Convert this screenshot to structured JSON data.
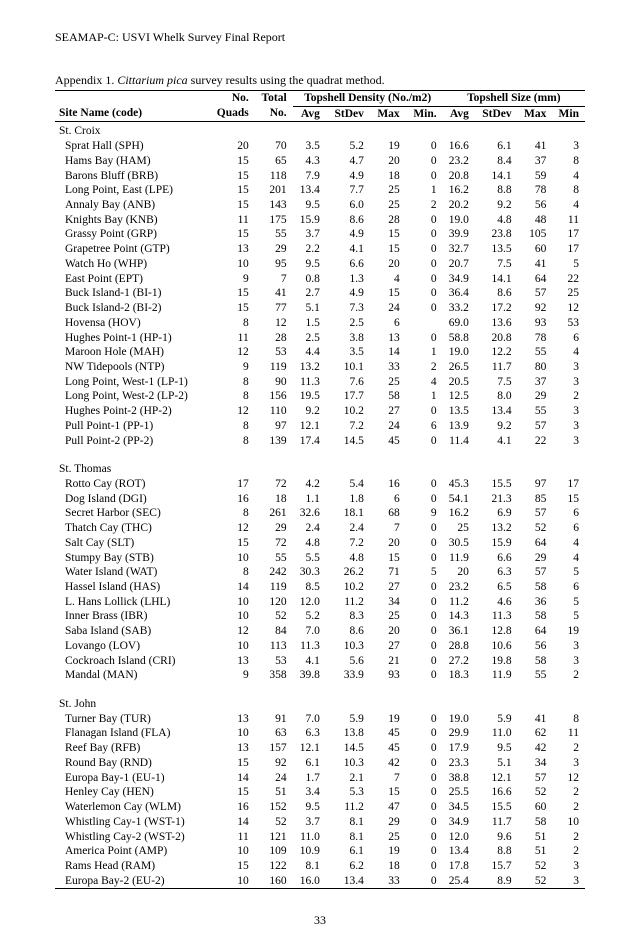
{
  "header": "SEAMAP-C: USVI Whelk Survey Final Report",
  "appendix_label": "Appendix 1.",
  "species": "Cittarium pica",
  "appendix_rest": " survey results using the quadrat method.",
  "page_number": "33",
  "columns": {
    "site": "Site Name (code)",
    "no_quads_top": "No.",
    "no_quads_bot": "Quads",
    "total_top": "Total",
    "total_bot": "No.",
    "density_header": "Topshell Density (No./m2)",
    "size_header": "Topshell Size (mm)",
    "avg": "Avg",
    "stdev": "StDev",
    "max": "Max",
    "min": "Min.",
    "min2": "Min"
  },
  "regions": [
    {
      "name": "St. Croix",
      "rows": [
        {
          "site": "Sprat Hall  (SPH)",
          "q": "20",
          "t": "70",
          "da": "3.5",
          "ds": "5.2",
          "dx": "19",
          "dn": "0",
          "sa": "16.6",
          "ss": "6.1",
          "sx": "41",
          "sn": "3"
        },
        {
          "site": "Hams Bay  (HAM)",
          "q": "15",
          "t": "65",
          "da": "4.3",
          "ds": "4.7",
          "dx": "20",
          "dn": "0",
          "sa": "23.2",
          "ss": "8.4",
          "sx": "37",
          "sn": "8"
        },
        {
          "site": "Barons Bluff  (BRB)",
          "q": "15",
          "t": "118",
          "da": "7.9",
          "ds": "4.9",
          "dx": "18",
          "dn": "0",
          "sa": "20.8",
          "ss": "14.1",
          "sx": "59",
          "sn": "4"
        },
        {
          "site": "Long Point, East  (LPE)",
          "q": "15",
          "t": "201",
          "da": "13.4",
          "ds": "7.7",
          "dx": "25",
          "dn": "1",
          "sa": "16.2",
          "ss": "8.8",
          "sx": "78",
          "sn": "8"
        },
        {
          "site": "Annaly Bay  (ANB)",
          "q": "15",
          "t": "143",
          "da": "9.5",
          "ds": "6.0",
          "dx": "25",
          "dn": "2",
          "sa": "20.2",
          "ss": "9.2",
          "sx": "56",
          "sn": "4"
        },
        {
          "site": "Knights Bay  (KNB)",
          "q": "11",
          "t": "175",
          "da": "15.9",
          "ds": "8.6",
          "dx": "28",
          "dn": "0",
          "sa": "19.0",
          "ss": "4.8",
          "sx": "48",
          "sn": "11"
        },
        {
          "site": "Grassy Point  (GRP)",
          "q": "15",
          "t": "55",
          "da": "3.7",
          "ds": "4.9",
          "dx": "15",
          "dn": "0",
          "sa": "39.9",
          "ss": "23.8",
          "sx": "105",
          "sn": "17"
        },
        {
          "site": "Grapetree Point  (GTP)",
          "q": "13",
          "t": "29",
          "da": "2.2",
          "ds": "4.1",
          "dx": "15",
          "dn": "0",
          "sa": "32.7",
          "ss": "13.5",
          "sx": "60",
          "sn": "17"
        },
        {
          "site": "Watch Ho  (WHP)",
          "q": "10",
          "t": "95",
          "da": "9.5",
          "ds": "6.6",
          "dx": "20",
          "dn": "0",
          "sa": "20.7",
          "ss": "7.5",
          "sx": "41",
          "sn": "5"
        },
        {
          "site": "East Point  (EPT)",
          "q": "9",
          "t": "7",
          "da": "0.8",
          "ds": "1.3",
          "dx": "4",
          "dn": "0",
          "sa": "34.9",
          "ss": "14.1",
          "sx": "64",
          "sn": "22"
        },
        {
          "site": "Buck Island-1  (BI-1)",
          "q": "15",
          "t": "41",
          "da": "2.7",
          "ds": "4.9",
          "dx": "15",
          "dn": "0",
          "sa": "36.4",
          "ss": "8.6",
          "sx": "57",
          "sn": "25"
        },
        {
          "site": "Buck Island-2  (BI-2)",
          "q": "15",
          "t": "77",
          "da": "5.1",
          "ds": "7.3",
          "dx": "24",
          "dn": "0",
          "sa": "33.2",
          "ss": "17.2",
          "sx": "92",
          "sn": "12"
        },
        {
          "site": "Hovensa  (HOV)",
          "q": "8",
          "t": "12",
          "da": "1.5",
          "ds": "2.5",
          "dx": "6",
          "dn": "",
          "sa": "69.0",
          "ss": "13.6",
          "sx": "93",
          "sn": "53"
        },
        {
          "site": "Hughes Point-1  (HP-1)",
          "q": "11",
          "t": "28",
          "da": "2.5",
          "ds": "3.8",
          "dx": "13",
          "dn": "0",
          "sa": "58.8",
          "ss": "20.8",
          "sx": "78",
          "sn": "6"
        },
        {
          "site": "Maroon Hole  (MAH)",
          "q": "12",
          "t": "53",
          "da": "4.4",
          "ds": "3.5",
          "dx": "14",
          "dn": "1",
          "sa": "19.0",
          "ss": "12.2",
          "sx": "55",
          "sn": "4"
        },
        {
          "site": "NW Tidepools  (NTP)",
          "q": "9",
          "t": "119",
          "da": "13.2",
          "ds": "10.1",
          "dx": "33",
          "dn": "2",
          "sa": "26.5",
          "ss": "11.7",
          "sx": "80",
          "sn": "3"
        },
        {
          "site": "Long Point, West-1  (LP-1)",
          "q": "8",
          "t": "90",
          "da": "11.3",
          "ds": "7.6",
          "dx": "25",
          "dn": "4",
          "sa": "20.5",
          "ss": "7.5",
          "sx": "37",
          "sn": "3"
        },
        {
          "site": "Long Point, West-2  (LP-2)",
          "q": "8",
          "t": "156",
          "da": "19.5",
          "ds": "17.7",
          "dx": "58",
          "dn": "1",
          "sa": "12.5",
          "ss": "8.0",
          "sx": "29",
          "sn": "2"
        },
        {
          "site": "Hughes Point-2  (HP-2)",
          "q": "12",
          "t": "110",
          "da": "9.2",
          "ds": "10.2",
          "dx": "27",
          "dn": "0",
          "sa": "13.5",
          "ss": "13.4",
          "sx": "55",
          "sn": "3"
        },
        {
          "site": "Pull Point-1  (PP-1)",
          "q": "8",
          "t": "97",
          "da": "12.1",
          "ds": "7.2",
          "dx": "24",
          "dn": "6",
          "sa": "13.9",
          "ss": "9.2",
          "sx": "57",
          "sn": "3"
        },
        {
          "site": "Pull Point-2  (PP-2)",
          "q": "8",
          "t": "139",
          "da": "17.4",
          "ds": "14.5",
          "dx": "45",
          "dn": "0",
          "sa": "11.4",
          "ss": "4.1",
          "sx": "22",
          "sn": "3"
        }
      ]
    },
    {
      "name": "St. Thomas",
      "rows": [
        {
          "site": "Rotto Cay  (ROT)",
          "q": "17",
          "t": "72",
          "da": "4.2",
          "ds": "5.4",
          "dx": "16",
          "dn": "0",
          "sa": "45.3",
          "ss": "15.5",
          "sx": "97",
          "sn": "17"
        },
        {
          "site": "Dog Island  (DGI)",
          "q": "16",
          "t": "18",
          "da": "1.1",
          "ds": "1.8",
          "dx": "6",
          "dn": "0",
          "sa": "54.1",
          "ss": "21.3",
          "sx": "85",
          "sn": "15"
        },
        {
          "site": "Secret Harbor  (SEC)",
          "q": "8",
          "t": "261",
          "da": "32.6",
          "ds": "18.1",
          "dx": "68",
          "dn": "9",
          "sa": "16.2",
          "ss": "6.9",
          "sx": "57",
          "sn": "6"
        },
        {
          "site": "Thatch Cay  (THC)",
          "q": "12",
          "t": "29",
          "da": "2.4",
          "ds": "2.4",
          "dx": "7",
          "dn": "0",
          "sa": "25",
          "ss": "13.2",
          "sx": "52",
          "sn": "6"
        },
        {
          "site": "Salt Cay  (SLT)",
          "q": "15",
          "t": "72",
          "da": "4.8",
          "ds": "7.2",
          "dx": "20",
          "dn": "0",
          "sa": "30.5",
          "ss": "15.9",
          "sx": "64",
          "sn": "4"
        },
        {
          "site": "Stumpy Bay  (STB)",
          "q": "10",
          "t": "55",
          "da": "5.5",
          "ds": "4.8",
          "dx": "15",
          "dn": "0",
          "sa": "11.9",
          "ss": "6.6",
          "sx": "29",
          "sn": "4"
        },
        {
          "site": "Water Island  (WAT)",
          "q": "8",
          "t": "242",
          "da": "30.3",
          "ds": "26.2",
          "dx": "71",
          "dn": "5",
          "sa": "20",
          "ss": "6.3",
          "sx": "57",
          "sn": "5"
        },
        {
          "site": "Hassel Island  (HAS)",
          "q": "14",
          "t": "119",
          "da": "8.5",
          "ds": "10.2",
          "dx": "27",
          "dn": "0",
          "sa": "23.2",
          "ss": "6.5",
          "sx": "58",
          "sn": "6"
        },
        {
          "site": "L. Hans Lollick  (LHL)",
          "q": "10",
          "t": "120",
          "da": "12.0",
          "ds": "11.2",
          "dx": "34",
          "dn": "0",
          "sa": "11.2",
          "ss": "4.6",
          "sx": "36",
          "sn": "5"
        },
        {
          "site": "Inner Brass  (IBR)",
          "q": "10",
          "t": "52",
          "da": "5.2",
          "ds": "8.3",
          "dx": "25",
          "dn": "0",
          "sa": "14.3",
          "ss": "11.3",
          "sx": "58",
          "sn": "5"
        },
        {
          "site": "Saba Island  (SAB)",
          "q": "12",
          "t": "84",
          "da": "7.0",
          "ds": "8.6",
          "dx": "20",
          "dn": "0",
          "sa": "36.1",
          "ss": "12.8",
          "sx": "64",
          "sn": "19"
        },
        {
          "site": "Lovango  (LOV)",
          "q": "10",
          "t": "113",
          "da": "11.3",
          "ds": "10.3",
          "dx": "27",
          "dn": "0",
          "sa": "28.8",
          "ss": "10.6",
          "sx": "56",
          "sn": "3"
        },
        {
          "site": "Cockroach Island  (CRI)",
          "q": "13",
          "t": "53",
          "da": "4.1",
          "ds": "5.6",
          "dx": "21",
          "dn": "0",
          "sa": "27.2",
          "ss": "19.8",
          "sx": "58",
          "sn": "3"
        },
        {
          "site": "Mandal  (MAN)",
          "q": "9",
          "t": "358",
          "da": "39.8",
          "ds": "33.9",
          "dx": "93",
          "dn": "0",
          "sa": "18.3",
          "ss": "11.9",
          "sx": "55",
          "sn": "2"
        }
      ]
    },
    {
      "name": "St. John",
      "rows": [
        {
          "site": "Turner Bay  (TUR)",
          "q": "13",
          "t": "91",
          "da": "7.0",
          "ds": "5.9",
          "dx": "19",
          "dn": "0",
          "sa": "19.0",
          "ss": "5.9",
          "sx": "41",
          "sn": "8"
        },
        {
          "site": "Flanagan Island  (FLA)",
          "q": "10",
          "t": "63",
          "da": "6.3",
          "ds": "13.8",
          "dx": "45",
          "dn": "0",
          "sa": "29.9",
          "ss": "11.0",
          "sx": "62",
          "sn": "11"
        },
        {
          "site": "Reef Bay  (RFB)",
          "q": "13",
          "t": "157",
          "da": "12.1",
          "ds": "14.5",
          "dx": "45",
          "dn": "0",
          "sa": "17.9",
          "ss": "9.5",
          "sx": "42",
          "sn": "2"
        },
        {
          "site": "Round Bay  (RND)",
          "q": "15",
          "t": "92",
          "da": "6.1",
          "ds": "10.3",
          "dx": "42",
          "dn": "0",
          "sa": "23.3",
          "ss": "5.1",
          "sx": "34",
          "sn": "3"
        },
        {
          "site": "Europa Bay-1  (EU-1)",
          "q": "14",
          "t": "24",
          "da": "1.7",
          "ds": "2.1",
          "dx": "7",
          "dn": "0",
          "sa": "38.8",
          "ss": "12.1",
          "sx": "57",
          "sn": "12"
        },
        {
          "site": "Henley Cay  (HEN)",
          "q": "15",
          "t": "51",
          "da": "3.4",
          "ds": "5.3",
          "dx": "15",
          "dn": "0",
          "sa": "25.5",
          "ss": "16.6",
          "sx": "52",
          "sn": "2"
        },
        {
          "site": "Waterlemon Cay  (WLM)",
          "q": "16",
          "t": "152",
          "da": "9.5",
          "ds": "11.2",
          "dx": "47",
          "dn": "0",
          "sa": "34.5",
          "ss": "15.5",
          "sx": "60",
          "sn": "2"
        },
        {
          "site": "Whistling Cay-1  (WST-1)",
          "q": "14",
          "t": "52",
          "da": "3.7",
          "ds": "8.1",
          "dx": "29",
          "dn": "0",
          "sa": "34.9",
          "ss": "11.7",
          "sx": "58",
          "sn": "10"
        },
        {
          "site": "Whistling Cay-2  (WST-2)",
          "q": "11",
          "t": "121",
          "da": "11.0",
          "ds": "8.1",
          "dx": "25",
          "dn": "0",
          "sa": "12.0",
          "ss": "9.6",
          "sx": "51",
          "sn": "2"
        },
        {
          "site": "America Point  (AMP)",
          "q": "10",
          "t": "109",
          "da": "10.9",
          "ds": "6.1",
          "dx": "19",
          "dn": "0",
          "sa": "13.4",
          "ss": "8.8",
          "sx": "51",
          "sn": "2"
        },
        {
          "site": "Rams Head  (RAM)",
          "q": "15",
          "t": "122",
          "da": "8.1",
          "ds": "6.2",
          "dx": "18",
          "dn": "0",
          "sa": "17.8",
          "ss": "15.7",
          "sx": "52",
          "sn": "3"
        },
        {
          "site": "Europa Bay-2 (EU-2)",
          "q": "10",
          "t": "160",
          "da": "16.0",
          "ds": "13.4",
          "dx": "33",
          "dn": "0",
          "sa": "25.4",
          "ss": "8.9",
          "sx": "52",
          "sn": "3"
        }
      ]
    }
  ]
}
